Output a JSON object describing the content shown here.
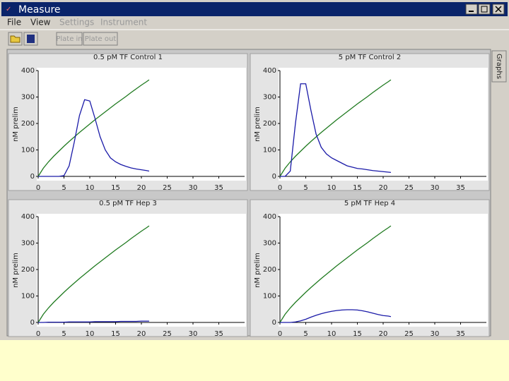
{
  "window": {
    "title": "Measure",
    "menu": [
      "File",
      "View",
      "Settings",
      "Instrument"
    ],
    "buttons": [
      "Plate in",
      "Plate out"
    ],
    "tab": "Graphs"
  },
  "chart_data": [
    {
      "type": "line",
      "title": "0.5 pM TF Control 1",
      "ylabel": "nM prelim",
      "x": [
        0,
        1,
        2,
        3,
        4,
        5,
        6,
        7,
        8,
        9,
        10,
        11,
        12,
        13,
        14,
        15,
        16,
        17,
        18,
        19,
        20,
        21,
        21.5
      ],
      "series": [
        {
          "color": "#1f7a1f",
          "values": [
            0,
            31,
            55,
            76,
            95,
            114,
            132,
            149,
            166,
            182,
            198,
            214,
            229,
            244,
            259,
            274,
            288,
            302,
            317,
            331,
            345,
            358,
            365
          ]
        },
        {
          "color": "#1a1aa8",
          "values": [
            0,
            0,
            0,
            0,
            0,
            3,
            40,
            130,
            230,
            290,
            285,
            220,
            150,
            100,
            70,
            55,
            45,
            38,
            32,
            28,
            25,
            22,
            20
          ]
        }
      ],
      "xlim": [
        0,
        40
      ],
      "ylim": [
        0,
        400
      ],
      "xticks": [
        0,
        5,
        10,
        15,
        20,
        25,
        30,
        35
      ],
      "yticks": [
        0,
        100,
        200,
        300,
        400
      ]
    },
    {
      "type": "line",
      "title": "5 pM TF Control 2",
      "ylabel": "nM prelim",
      "x": [
        0,
        1,
        2,
        3,
        4,
        5,
        6,
        7,
        8,
        9,
        10,
        11,
        12,
        13,
        14,
        15,
        16,
        17,
        18,
        19,
        20,
        21,
        21.5
      ],
      "series": [
        {
          "color": "#1f7a1f",
          "values": [
            0,
            31,
            55,
            76,
            95,
            114,
            132,
            149,
            166,
            182,
            198,
            214,
            229,
            244,
            259,
            274,
            288,
            302,
            317,
            331,
            345,
            358,
            365
          ]
        },
        {
          "color": "#1a1aa8",
          "values": [
            0,
            0,
            20,
            200,
            350,
            350,
            250,
            160,
            110,
            85,
            70,
            60,
            50,
            40,
            35,
            30,
            28,
            25,
            22,
            20,
            18,
            16,
            15
          ]
        }
      ],
      "xlim": [
        0,
        40
      ],
      "ylim": [
        0,
        400
      ],
      "xticks": [
        0,
        5,
        10,
        15,
        20,
        25,
        30,
        35
      ],
      "yticks": [
        0,
        100,
        200,
        300,
        400
      ]
    },
    {
      "type": "line",
      "title": "0.5 pM TF Hep 3",
      "ylabel": "nM prelim",
      "x": [
        0,
        1,
        2,
        3,
        4,
        5,
        6,
        7,
        8,
        9,
        10,
        11,
        12,
        13,
        14,
        15,
        16,
        17,
        18,
        19,
        20,
        21,
        21.5
      ],
      "series": [
        {
          "color": "#1f7a1f",
          "values": [
            0,
            31,
            55,
            76,
            95,
            114,
            132,
            149,
            166,
            182,
            198,
            214,
            229,
            244,
            259,
            274,
            288,
            302,
            317,
            331,
            345,
            358,
            365
          ]
        },
        {
          "color": "#1a1aa8",
          "values": [
            0,
            0,
            1,
            1,
            1,
            1,
            2,
            2,
            2,
            2,
            2,
            3,
            3,
            3,
            3,
            3,
            4,
            4,
            4,
            4,
            5,
            5,
            5
          ]
        }
      ],
      "xlim": [
        0,
        40
      ],
      "ylim": [
        0,
        400
      ],
      "xticks": [
        0,
        5,
        10,
        15,
        20,
        25,
        30,
        35
      ],
      "yticks": [
        0,
        100,
        200,
        300,
        400
      ]
    },
    {
      "type": "line",
      "title": "5 pM TF Hep 4",
      "ylabel": "nM prelim",
      "x": [
        0,
        1,
        2,
        3,
        4,
        5,
        6,
        7,
        8,
        9,
        10,
        11,
        12,
        13,
        14,
        15,
        16,
        17,
        18,
        19,
        20,
        21,
        21.5
      ],
      "series": [
        {
          "color": "#1f7a1f",
          "values": [
            0,
            31,
            55,
            76,
            95,
            114,
            132,
            149,
            166,
            182,
            198,
            214,
            229,
            244,
            259,
            274,
            288,
            302,
            317,
            331,
            345,
            358,
            365
          ]
        },
        {
          "color": "#1a1aa8",
          "values": [
            0,
            0,
            0,
            2,
            6,
            12,
            20,
            27,
            33,
            38,
            42,
            45,
            47,
            48,
            48,
            47,
            44,
            40,
            35,
            30,
            26,
            24,
            22
          ]
        }
      ],
      "xlim": [
        0,
        40
      ],
      "ylim": [
        0,
        400
      ],
      "xticks": [
        0,
        5,
        10,
        15,
        20,
        25,
        30,
        35
      ],
      "yticks": [
        0,
        100,
        200,
        300,
        400
      ]
    }
  ]
}
